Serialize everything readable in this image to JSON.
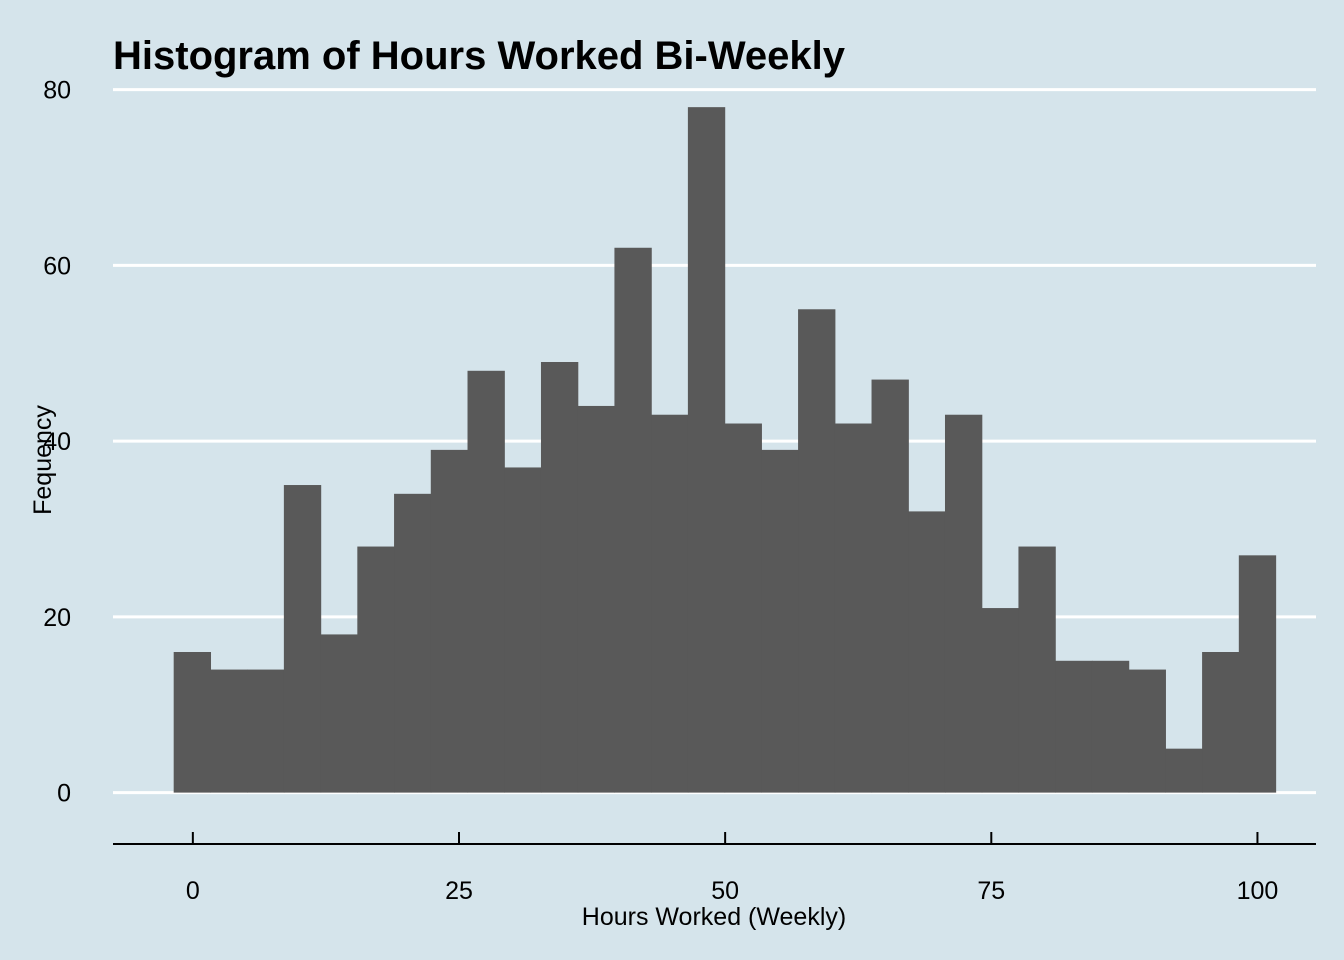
{
  "chart_data": {
    "type": "bar",
    "title": "Histogram of Hours Worked Bi-Weekly",
    "xlabel": "Hours Worked (Weekly)",
    "ylabel": "Fequency",
    "xlim": [
      -7.5,
      105.5
    ],
    "ylim": [
      -3.8,
      82
    ],
    "grid": true,
    "legend": "none",
    "x_ticks": [
      0,
      25,
      50,
      75,
      100
    ],
    "y_ticks": [
      0,
      20,
      40,
      60,
      80
    ],
    "bin_width": 3.45,
    "bin_starts": [
      -1.8,
      1.65,
      5.1,
      8.55,
      12.0,
      15.45,
      18.9,
      22.35,
      25.8,
      29.25,
      32.7,
      36.15,
      39.6,
      43.05,
      46.5,
      49.95,
      53.4,
      56.85,
      60.3,
      63.75,
      67.2,
      70.65,
      74.1,
      77.55,
      81.0,
      84.45,
      87.9,
      91.35,
      94.8,
      98.25
    ],
    "values": [
      16,
      14,
      14,
      35,
      18,
      28,
      34,
      39,
      48,
      37,
      49,
      44,
      62,
      43,
      78,
      42,
      39,
      55,
      42,
      47,
      32,
      43,
      21,
      28,
      15,
      15,
      14,
      5,
      16,
      27
    ],
    "colors": {
      "background": "#d5e4eb",
      "bar": "#595959",
      "grid": "#ffffff",
      "axis": "#000000"
    }
  }
}
